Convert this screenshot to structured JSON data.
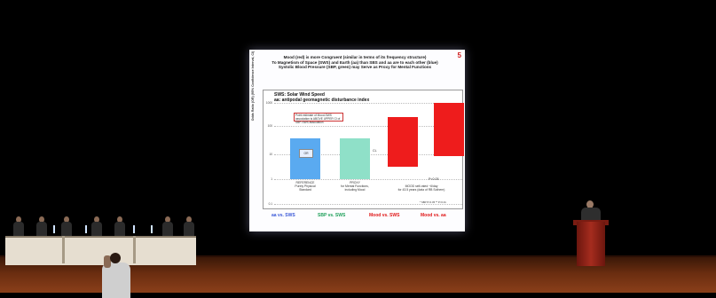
{
  "slide": {
    "number": "5",
    "title_lines": [
      "Mood (red) is more Congruent (similar in terms of its frequency structure)",
      "To Magnetism of Space (SWS) and Earth (aa) than SBS and aa are to each other (blue)",
      "Systolic Blood Pressure (SBP, green) may Serve as Proxy for Mental Functions"
    ],
    "plot_title_lines": [
      "SWS: Solar Wind Speed",
      "aa: antipodal geomagnetic disturbance index"
    ],
    "y_axis_label": "Odds Ratio (OR) (95% Confidence Interval, CI)",
    "y_ticks": [
      "1000",
      "100",
      "10",
      "1",
      "0.1"
    ],
    "note_box": "Point estimate of Mood-SWS association is ABOVE UPPER CI of SBP-SWS association",
    "bars": [
      {
        "label_lines": [
          "REFERENCE",
          "Purely Physical",
          "Standard"
        ],
        "color": "#5aaaf0",
        "inner_label": "OR"
      },
      {
        "label_lines": [
          "PROXY",
          "for Mental Functions,",
          "including Mood"
        ],
        "color": "#8fe0c8",
        "inner_label": "CL"
      },
      {
        "label_lines": [
          "MOOD self-rated ~6/day",
          "for 43.5 years (data of RB Sothern)"
        ],
        "color": "#ee1c1c"
      },
      {
        "color": "#ee1c1c"
      }
    ],
    "p_value": "P<0.05",
    "footnote": "* SBP P<0.05   ** P<0.01",
    "legend": [
      {
        "text": "aa vs. SWS",
        "color": "#3d5bd8"
      },
      {
        "text": "SBP vs. SWS",
        "color": "#1fa05a"
      },
      {
        "text": "Mood vs. SWS",
        "color": "#e01818"
      },
      {
        "text": "Mood vs. aa",
        "color": "#e01818"
      }
    ]
  }
}
